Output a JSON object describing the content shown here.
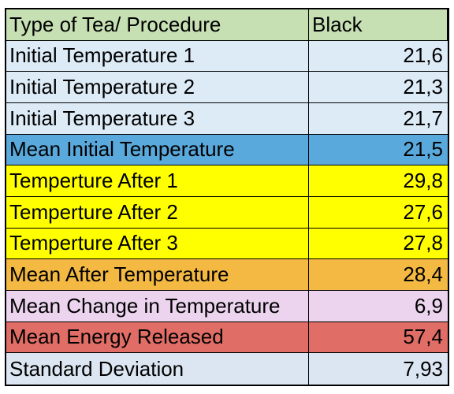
{
  "header": {
    "label": "Type of Tea/ Procedure",
    "value": "Black",
    "color": "#c6e0b4"
  },
  "rows": [
    {
      "label": "Initial Temperature 1",
      "value": "21,6",
      "color": "#ddebf7"
    },
    {
      "label": "Initial Temperature 2",
      "value": "21,3",
      "color": "#ddebf7"
    },
    {
      "label": "Initial Temperature 3",
      "value": "21,7",
      "color": "#ddebf7"
    },
    {
      "label": "Mean Initial Temperature",
      "value": "21,5",
      "color": "#5aa9dc"
    },
    {
      "label": "Temperture After 1",
      "value": "29,8",
      "color": "#ffff00"
    },
    {
      "label": "Temperture After 2",
      "value": "27,6",
      "color": "#ffff00"
    },
    {
      "label": "Temperture After 3",
      "value": "27,8",
      "color": "#ffff00"
    },
    {
      "label": "Mean After Temperature",
      "value": "28,4",
      "color": "#f4b942"
    },
    {
      "label": "Mean Change in Temperature",
      "value": "6,9",
      "color": "#ecd3ee"
    },
    {
      "label": "Mean Energy Released",
      "value": "57,4",
      "color": "#e06e66"
    },
    {
      "label": "Standard Deviation",
      "value": "7,93",
      "color": "#dce6f2"
    }
  ]
}
